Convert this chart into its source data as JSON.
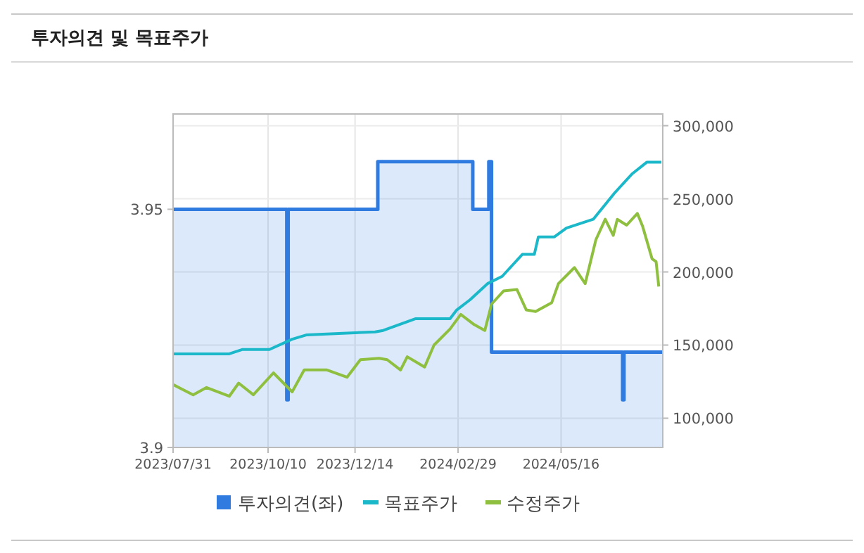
{
  "chart_data": {
    "type": "line",
    "title": "투자의견 및 목표주가",
    "xlim": [
      "2023-07-31",
      "2024-07-31"
    ],
    "xticks": [
      {
        "value": "2023-07-31",
        "label": "2023/07/31"
      },
      {
        "value": "2023-10-10",
        "label": "2023/10/10"
      },
      {
        "value": "2023-12-14",
        "label": "2023/12/14"
      },
      {
        "value": "2024-02-29",
        "label": "2024/02/29"
      },
      {
        "value": "2024-05-16",
        "label": "2024/05/16"
      }
    ],
    "ylim": [
      3.9,
      3.97
    ],
    "yticks": [
      3.9,
      3.95
    ],
    "y2lim": [
      80000,
      308000
    ],
    "y2ticks": [
      {
        "value": 100000,
        "label": "100,000"
      },
      {
        "value": 150000,
        "label": "150,000"
      },
      {
        "value": 200000,
        "label": "200,000"
      },
      {
        "value": 250000,
        "label": "250,000"
      },
      {
        "value": 300000,
        "label": "300,000"
      }
    ],
    "grid": true,
    "legend": "bottom",
    "series": [
      {
        "name": "투자의견(좌)",
        "type": "area",
        "color": "#2f7be0",
        "x": [
          "2023-07-31",
          "2023-10-24",
          "2023-10-24",
          "2023-10-25",
          "2023-10-25",
          "2023-12-31",
          "2023-12-31",
          "2024-03-11",
          "2024-03-11",
          "2024-03-23",
          "2024-03-23",
          "2024-03-25",
          "2024-03-25",
          "2024-07-01",
          "2024-07-01",
          "2024-07-02",
          "2024-07-02",
          "2024-07-31"
        ],
        "values": [
          3.95,
          3.95,
          3.91,
          3.91,
          3.95,
          3.95,
          3.96,
          3.96,
          3.95,
          3.95,
          3.96,
          3.96,
          3.92,
          3.92,
          3.91,
          3.91,
          3.92,
          3.92
        ]
      },
      {
        "name": "목표주가",
        "axis": "y2",
        "color": "#1bb8c9",
        "x": [
          "2023-07-31",
          "2023-09-11",
          "2023-09-21",
          "2023-10-11",
          "2023-10-28",
          "2023-11-08",
          "2023-12-29",
          "2024-01-04",
          "2024-01-28",
          "2024-02-23",
          "2024-02-28",
          "2024-03-09",
          "2024-03-22",
          "2024-04-02",
          "2024-04-12",
          "2024-04-17",
          "2024-04-26",
          "2024-04-29",
          "2024-05-11",
          "2024-05-20",
          "2024-06-09",
          "2024-06-25",
          "2024-07-08",
          "2024-07-19",
          "2024-07-30"
        ],
        "values": [
          144000,
          144000,
          147000,
          147000,
          154000,
          157000,
          159000,
          160000,
          168000,
          168000,
          174000,
          181000,
          192000,
          197000,
          207000,
          212000,
          212000,
          224000,
          224000,
          230000,
          236000,
          254000,
          267000,
          275000,
          275000
        ]
      },
      {
        "name": "수정주가",
        "axis": "y2",
        "color": "#8fbf3f",
        "x": [
          "2023-07-31",
          "2023-08-15",
          "2023-08-25",
          "2023-09-11",
          "2023-09-18",
          "2023-09-29",
          "2023-10-14",
          "2023-10-28",
          "2023-11-06",
          "2023-11-23",
          "2023-12-08",
          "2023-12-18",
          "2024-01-01",
          "2024-01-07",
          "2024-01-17",
          "2024-01-22",
          "2024-02-04",
          "2024-02-11",
          "2024-02-23",
          "2024-03-02",
          "2024-03-12",
          "2024-03-20",
          "2024-03-25",
          "2024-04-03",
          "2024-04-13",
          "2024-04-20",
          "2024-04-27",
          "2024-05-09",
          "2024-05-14",
          "2024-05-26",
          "2024-06-03",
          "2024-06-11",
          "2024-06-18",
          "2024-06-24",
          "2024-06-27",
          "2024-07-04",
          "2024-07-12",
          "2024-07-16",
          "2024-07-23",
          "2024-07-26",
          "2024-07-28"
        ],
        "values": [
          123000,
          116000,
          121000,
          115000,
          124000,
          116000,
          131000,
          118000,
          133000,
          133000,
          128000,
          140000,
          141000,
          140000,
          133000,
          142000,
          135000,
          150000,
          161000,
          171000,
          164000,
          160000,
          178000,
          187000,
          188000,
          174000,
          173000,
          179000,
          192000,
          203000,
          192000,
          222000,
          236000,
          225000,
          236000,
          232000,
          240000,
          231000,
          209000,
          207000,
          190000
        ]
      }
    ]
  }
}
